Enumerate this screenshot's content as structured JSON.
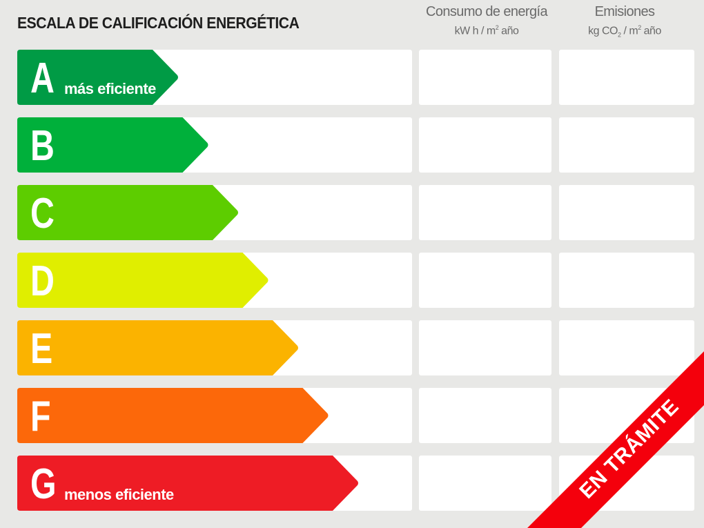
{
  "title": "ESCALA DE CALIFICACIÓN ENERGÉTICA",
  "columns": {
    "energy": {
      "title": "Consumo de energía",
      "unit_a": "kW h / m",
      "unit_sup": "2",
      "unit_b": " año"
    },
    "emissions": {
      "title": "Emisiones",
      "unit_a": "kg CO",
      "unit_sub": "2",
      "unit_mid": " / m",
      "unit_sup": "2",
      "unit_b": " año"
    }
  },
  "ratings": [
    {
      "letter": "A",
      "label": "más eficiente",
      "color": "#009b45"
    },
    {
      "letter": "B",
      "label": "",
      "color": "#00b03b"
    },
    {
      "letter": "C",
      "label": "",
      "color": "#5dcd00"
    },
    {
      "letter": "D",
      "label": "",
      "color": "#e0ee00"
    },
    {
      "letter": "E",
      "label": "",
      "color": "#fbb300"
    },
    {
      "letter": "F",
      "label": "",
      "color": "#fc680a"
    },
    {
      "letter": "G",
      "label": "menos eficiente",
      "color": "#ee1c25"
    }
  ],
  "ribbon": {
    "text": "EN TRÁMITE",
    "color": "#f4000c"
  }
}
